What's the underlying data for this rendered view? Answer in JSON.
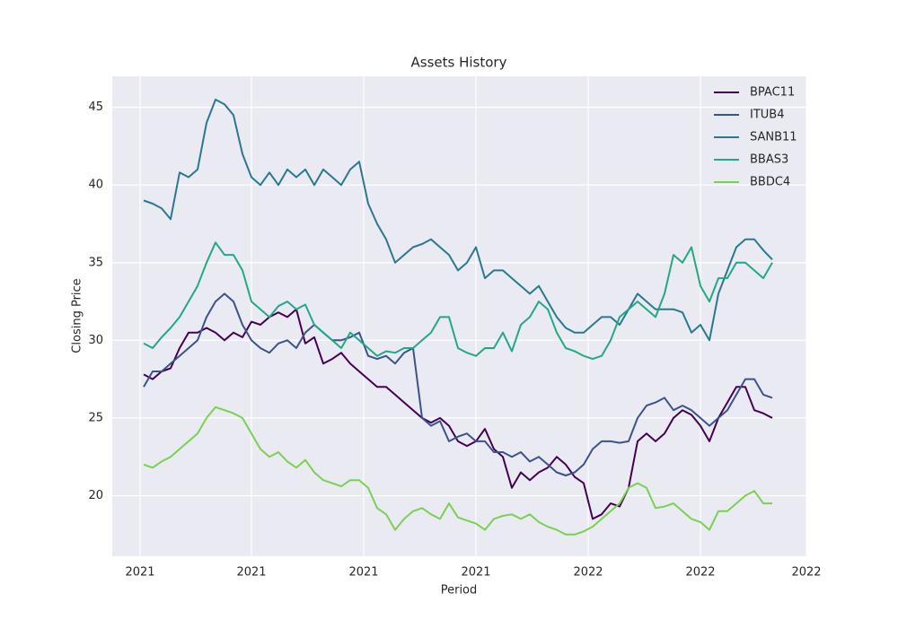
{
  "chart_data": {
    "type": "line",
    "title": "Assets History",
    "x_label": "Period",
    "y_label": "Closing Price",
    "x": [
      0,
      1,
      2,
      3,
      4,
      5,
      6,
      7,
      8,
      9,
      10,
      11,
      12,
      13,
      14,
      15,
      16,
      17,
      18,
      19,
      20,
      21,
      22,
      23,
      24,
      25,
      26,
      27,
      28,
      29,
      30,
      31,
      32,
      33,
      34,
      35,
      36,
      37,
      38,
      39,
      40,
      41,
      42,
      43,
      44,
      45,
      46,
      47,
      48,
      49,
      50,
      51,
      52,
      53,
      54,
      55,
      56,
      57,
      58,
      59,
      60,
      61,
      62,
      63,
      64,
      65,
      66,
      67,
      68,
      69,
      70
    ],
    "series": [
      {
        "name": "BPAC11",
        "color": "#440154",
        "values": [
          27.8,
          27.5,
          28,
          28.2,
          29.5,
          30.5,
          30.5,
          30.8,
          30.5,
          30,
          30.5,
          30.2,
          31.2,
          31,
          31.5,
          31.8,
          31.5,
          32,
          29.8,
          30.2,
          28.5,
          28.8,
          29.2,
          28.5,
          28,
          27.5,
          27,
          27,
          26.5,
          26,
          25.5,
          25,
          24.7,
          25,
          24.5,
          23.5,
          23.2,
          23.5,
          24.3,
          23,
          22.5,
          20.5,
          21.5,
          21,
          21.5,
          21.8,
          22.5,
          22,
          21.2,
          20.8,
          18.5,
          18.8,
          19.5,
          19.3,
          20.5,
          23.5,
          24,
          23.5,
          24,
          25,
          25.5,
          25.2,
          24.5,
          23.5,
          25,
          26,
          27,
          27,
          25.5,
          25.3,
          25
        ]
      },
      {
        "name": "ITUB4",
        "color": "#3b528b",
        "values": [
          27,
          28,
          28,
          28.5,
          29,
          29.5,
          30,
          31.5,
          32.5,
          33,
          32.5,
          31,
          30,
          29.5,
          29.2,
          29.8,
          30,
          29.5,
          30.5,
          31,
          30.5,
          30,
          30,
          30.2,
          30.5,
          29,
          28.8,
          29,
          28.5,
          29.2,
          29.5,
          25,
          24.5,
          24.8,
          23.5,
          23.8,
          24,
          23.5,
          23.5,
          22.8,
          22.8,
          22.5,
          22.8,
          22.2,
          22.5,
          22,
          21.5,
          21.3,
          21.5,
          22,
          23,
          23.5,
          23.5,
          23.4,
          23.5,
          25,
          25.8,
          26,
          26.3,
          25.5,
          25.8,
          25.5,
          25,
          24.5,
          25,
          25.5,
          26.5,
          27.5,
          27.5,
          26.5,
          26.3
        ]
      },
      {
        "name": "SANB11",
        "color": "#2a788e",
        "values": [
          39,
          38.8,
          38.5,
          37.8,
          40.8,
          40.5,
          41,
          44,
          45.5,
          45.2,
          44.5,
          42,
          40.5,
          40,
          40.8,
          40,
          41,
          40.5,
          41,
          40,
          41,
          40.5,
          40,
          41,
          41.5,
          38.8,
          37.5,
          36.5,
          35,
          35.5,
          36,
          36.2,
          36.5,
          36,
          35.5,
          34.5,
          35,
          36,
          34,
          34.5,
          34.5,
          34,
          33.5,
          33,
          33.5,
          32.5,
          31.5,
          30.8,
          30.5,
          30.5,
          31,
          31.5,
          31.5,
          31,
          32,
          33,
          32.5,
          32,
          32,
          32,
          31.8,
          30.5,
          31,
          30,
          33,
          34.5,
          36,
          36.5,
          36.5,
          35.8,
          35.2
        ]
      },
      {
        "name": "BBAS3",
        "color": "#22a884",
        "values": [
          29.8,
          29.5,
          30.2,
          30.8,
          31.5,
          32.5,
          33.5,
          35,
          36.3,
          35.5,
          35.5,
          34.5,
          32.5,
          32,
          31.5,
          32.2,
          32.5,
          32,
          32.3,
          31,
          30.5,
          30,
          29.5,
          30.5,
          30,
          29.5,
          29,
          29.3,
          29.2,
          29.5,
          29.5,
          30,
          30.5,
          31.5,
          31.5,
          29.5,
          29.2,
          29,
          29.5,
          29.5,
          30.5,
          29.3,
          31,
          31.5,
          32.5,
          32,
          30.5,
          29.5,
          29.3,
          29,
          28.8,
          29,
          30,
          31.5,
          32,
          32.5,
          32,
          31.5,
          33,
          35.5,
          35,
          36,
          33.5,
          32.5,
          34,
          34,
          35,
          35,
          34.5,
          34,
          35
        ]
      },
      {
        "name": "BBDC4",
        "color": "#7ad151",
        "values": [
          22,
          21.8,
          22.2,
          22.5,
          23,
          23.5,
          24,
          25,
          25.7,
          25.5,
          25.3,
          25,
          24,
          23,
          22.5,
          22.8,
          22.2,
          21.8,
          22.3,
          21.5,
          21,
          20.8,
          20.6,
          21,
          21,
          20.5,
          19.2,
          18.8,
          17.8,
          18.5,
          19,
          19.2,
          18.8,
          18.5,
          19.5,
          18.6,
          18.4,
          18.2,
          17.8,
          18.5,
          18.7,
          18.8,
          18.5,
          18.8,
          18.3,
          18,
          17.8,
          17.5,
          17.5,
          17.7,
          18,
          18.5,
          19,
          19.5,
          20.5,
          20.8,
          20.5,
          19.2,
          19.3,
          19.5,
          19,
          18.5,
          18.3,
          17.8,
          19,
          19,
          19.5,
          20,
          20.3,
          19.5,
          19.5
        ]
      }
    ],
    "xlim": [
      -3.5,
      73.8
    ],
    "ylim": [
      16.1,
      47.0
    ],
    "xticks": [
      {
        "value": -0.4,
        "label": "2021"
      },
      {
        "value": 12,
        "label": "2021"
      },
      {
        "value": 24.5,
        "label": "2021"
      },
      {
        "value": 37,
        "label": "2021"
      },
      {
        "value": 49.5,
        "label": "2022"
      },
      {
        "value": 62,
        "label": "2022"
      },
      {
        "value": 73.8,
        "label": "2022"
      }
    ],
    "yticks": [
      20,
      25,
      30,
      35,
      40,
      45
    ],
    "grid": true,
    "legend": "upper right"
  }
}
